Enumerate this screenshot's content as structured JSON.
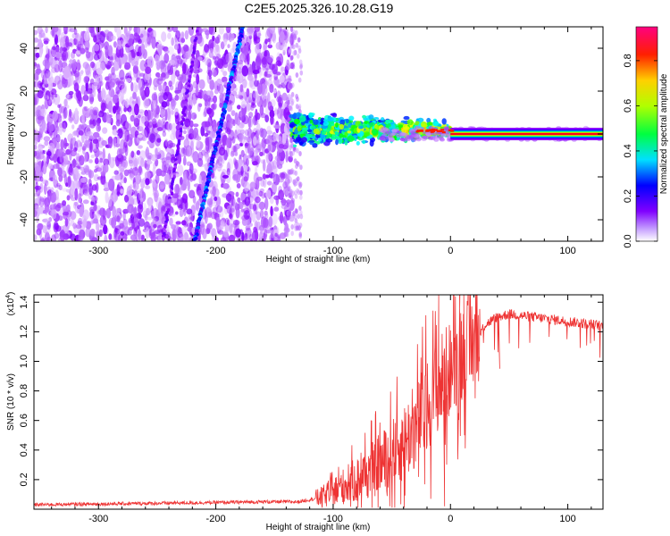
{
  "chart_data": [
    {
      "type": "heatmap",
      "title": "C2E5.2025.326.10.28.G19",
      "xlabel": "Height of straight line (km)",
      "ylabel": "Frequency (Hz)",
      "xlim": [
        -355,
        130
      ],
      "ylim": [
        -50,
        50
      ],
      "xticks": [
        -300,
        -200,
        -100,
        0,
        100
      ],
      "yticks": [
        -40,
        -20,
        0,
        20,
        40
      ],
      "colorbar": {
        "label": "Normalized spectral amplitude",
        "range": [
          0,
          0.95
        ],
        "ticks": [
          0.0,
          0.2,
          0.4,
          0.6,
          0.8
        ],
        "colors": [
          "#ffffff",
          "#8800ff",
          "#0000ff",
          "#00ffff",
          "#00ff00",
          "#ffff00",
          "#ff8800",
          "#ff0000",
          "#ff0080"
        ]
      },
      "features": [
        {
          "name": "noise region",
          "x_range": [
            -355,
            -135
          ],
          "freq_range": [
            -50,
            50
          ],
          "amplitude": 0.1
        },
        {
          "name": "reflection streak A",
          "from": [
            -177,
            50
          ],
          "to": [
            -218,
            -50
          ],
          "amplitude": 0.25
        },
        {
          "name": "reflection streak B",
          "from": [
            -215,
            50
          ],
          "to": [
            -245,
            -50
          ],
          "amplitude": 0.12
        },
        {
          "name": "direct signal transition",
          "x_range": [
            -135,
            0
          ],
          "freq_center": 2,
          "freq_halfwidth": 6,
          "amplitude": 0.5
        },
        {
          "name": "direct signal line",
          "x_range": [
            0,
            130
          ],
          "freq_center": 0,
          "amplitude": 0.9
        }
      ]
    },
    {
      "type": "line",
      "title": "",
      "xlabel": "Height of straight line (km)",
      "ylabel": "SNR (10 * v/v)",
      "yscale_label": "(x10",
      "yscale_exponent": "4",
      "xlim": [
        -355,
        130
      ],
      "ylim": [
        0,
        1.45
      ],
      "xticks": [
        -300,
        -200,
        -100,
        0,
        100
      ],
      "yticks": [
        0.2,
        0.4,
        0.6,
        0.8,
        1.0,
        1.2,
        1.4
      ],
      "series": [
        {
          "name": "SNR",
          "color": "#ee3333",
          "x": [
            -355,
            -300,
            -250,
            -200,
            -160,
            -130,
            -110,
            -100,
            -80,
            -60,
            -40,
            -30,
            -20,
            -10,
            0,
            10,
            20,
            30,
            40,
            50,
            60,
            80,
            100,
            120,
            130
          ],
          "y": [
            0.03,
            0.035,
            0.04,
            0.045,
            0.05,
            0.05,
            0.08,
            0.12,
            0.2,
            0.3,
            0.45,
            0.55,
            0.7,
            0.85,
            0.95,
            1.05,
            1.15,
            1.25,
            1.3,
            1.32,
            1.31,
            1.29,
            1.27,
            1.25,
            1.24
          ]
        }
      ],
      "spikes": [
        {
          "x": -10,
          "y": 1.45
        },
        {
          "x": 8,
          "y": 1.45
        },
        {
          "x": 12,
          "y": 0.5
        },
        {
          "x": 42,
          "y": 0.95
        },
        {
          "x": -5,
          "y": 0.02
        }
      ]
    }
  ]
}
